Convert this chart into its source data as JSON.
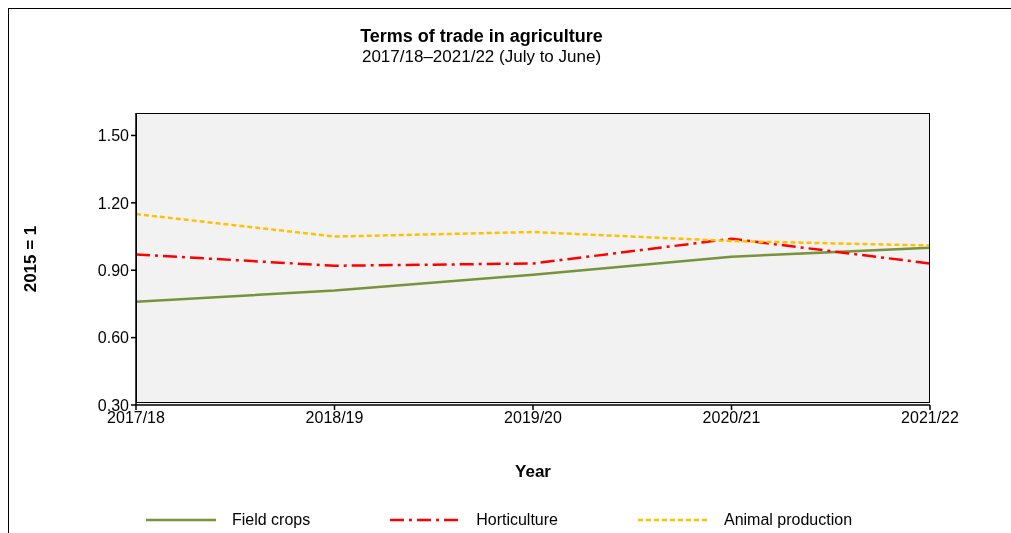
{
  "chart_data": {
    "type": "line",
    "title": "Terms of trade in agriculture",
    "subtitle": "2017/18–2021/22 (July to June)",
    "xlabel": "Year",
    "ylabel": "2015 = 1",
    "categories": [
      "2017/18",
      "2018/19",
      "2019/20",
      "2020/21",
      "2021/22"
    ],
    "series": [
      {
        "name": "Field crops",
        "color": "#77933c",
        "line_style": "solid",
        "values": [
          0.76,
          0.81,
          0.88,
          0.96,
          1.0
        ]
      },
      {
        "name": "Horticulture",
        "color": "#ff0000",
        "line_style": "dashdot",
        "values": [
          0.97,
          0.92,
          0.93,
          1.04,
          0.93
        ]
      },
      {
        "name": "Animal production",
        "color": "#ffc000",
        "line_style": "dashed",
        "values": [
          1.15,
          1.05,
          1.07,
          1.03,
          1.01
        ]
      }
    ],
    "ylim": [
      0.3,
      1.6
    ],
    "yticks": [
      {
        "value": 0.3,
        "label": "0.30"
      },
      {
        "value": 0.6,
        "label": "0.60"
      },
      {
        "value": 0.9,
        "label": "0.90"
      },
      {
        "value": 1.2,
        "label": "1.20"
      },
      {
        "value": 1.5,
        "label": "1.50"
      }
    ],
    "legend": "bottom",
    "marker": "none"
  }
}
